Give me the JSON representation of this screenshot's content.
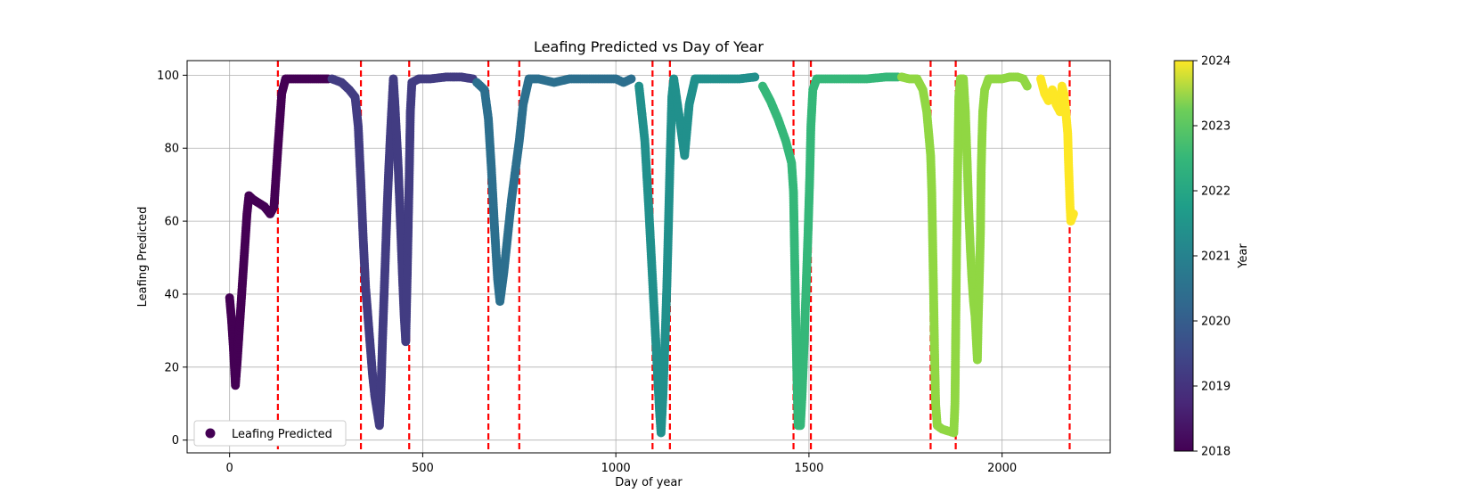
{
  "chart_data": {
    "type": "scatter",
    "title": "Leafing Predicted vs Day of Year",
    "xlabel": "Day of year",
    "ylabel": "Leafing Predicted",
    "xlim": [
      -110,
      2280
    ],
    "ylim": [
      -3.5,
      104
    ],
    "xticks": [
      0,
      500,
      1000,
      1500,
      2000
    ],
    "yticks": [
      0,
      20,
      40,
      60,
      80,
      100
    ],
    "grid": true,
    "legend": {
      "position": "lower-left",
      "entries": [
        {
          "label": "Leafing Predicted",
          "color": "#440154"
        }
      ]
    },
    "colorbar": {
      "label": "Year",
      "min": 2018,
      "max": 2024,
      "ticks": [
        2018,
        2019,
        2020,
        2021,
        2022,
        2023,
        2024
      ],
      "colormap": "viridis"
    },
    "vlines": {
      "color": "#ff0000",
      "style": "dashed",
      "x": [
        125,
        340,
        465,
        670,
        750,
        1095,
        1140,
        1460,
        1505,
        1815,
        1880,
        2175
      ]
    },
    "series": [
      {
        "year": 2018,
        "color": "#440154",
        "points": [
          [
            0,
            39
          ],
          [
            5,
            33
          ],
          [
            10,
            25
          ],
          [
            15,
            15
          ],
          [
            20,
            22
          ],
          [
            25,
            30
          ],
          [
            30,
            38
          ],
          [
            35,
            46
          ],
          [
            40,
            54
          ],
          [
            45,
            62
          ],
          [
            50,
            67
          ],
          [
            60,
            66
          ],
          [
            75,
            65
          ],
          [
            90,
            64
          ],
          [
            105,
            62
          ],
          [
            115,
            64
          ],
          [
            125,
            80
          ],
          [
            135,
            95
          ],
          [
            145,
            99
          ],
          [
            165,
            99
          ],
          [
            200,
            99
          ],
          [
            230,
            99
          ],
          [
            255,
            99
          ]
        ]
      },
      {
        "year": 2019,
        "color": "#423c82",
        "points": [
          [
            265,
            99
          ],
          [
            290,
            98
          ],
          [
            310,
            96
          ],
          [
            325,
            94
          ],
          [
            333,
            86
          ],
          [
            340,
            70
          ],
          [
            346,
            55
          ],
          [
            352,
            42
          ],
          [
            358,
            34
          ],
          [
            364,
            26
          ],
          [
            370,
            18
          ],
          [
            376,
            12
          ],
          [
            382,
            8
          ],
          [
            388,
            4
          ],
          [
            392,
            14
          ],
          [
            396,
            28
          ],
          [
            400,
            40
          ],
          [
            404,
            52
          ],
          [
            408,
            64
          ],
          [
            412,
            74
          ],
          [
            416,
            83
          ],
          [
            420,
            91
          ],
          [
            424,
            99
          ],
          [
            428,
            92
          ],
          [
            432,
            84
          ],
          [
            436,
            76
          ],
          [
            440,
            66
          ],
          [
            444,
            55
          ],
          [
            448,
            44
          ],
          [
            452,
            34
          ],
          [
            456,
            27
          ],
          [
            460,
            46
          ],
          [
            465,
            72
          ],
          [
            468,
            90
          ],
          [
            472,
            98
          ],
          [
            490,
            99
          ],
          [
            520,
            99
          ],
          [
            560,
            99.5
          ],
          [
            600,
            99.5
          ],
          [
            630,
            99
          ]
        ]
      },
      {
        "year": 2020,
        "color": "#2c6f8e",
        "points": [
          [
            640,
            98
          ],
          [
            660,
            96
          ],
          [
            670,
            88
          ],
          [
            678,
            74
          ],
          [
            686,
            58
          ],
          [
            694,
            44
          ],
          [
            700,
            38
          ],
          [
            710,
            46
          ],
          [
            720,
            56
          ],
          [
            730,
            66
          ],
          [
            740,
            74
          ],
          [
            750,
            82
          ],
          [
            760,
            92
          ],
          [
            775,
            99
          ],
          [
            800,
            99
          ],
          [
            840,
            98
          ],
          [
            880,
            99
          ],
          [
            920,
            99
          ],
          [
            960,
            99
          ],
          [
            1000,
            99
          ],
          [
            1020,
            98
          ],
          [
            1040,
            99
          ]
        ]
      },
      {
        "year": 2021,
        "color": "#21908c",
        "points": [
          [
            1060,
            97
          ],
          [
            1075,
            82
          ],
          [
            1085,
            64
          ],
          [
            1093,
            48
          ],
          [
            1100,
            34
          ],
          [
            1107,
            20
          ],
          [
            1113,
            8
          ],
          [
            1117,
            2
          ],
          [
            1122,
            12
          ],
          [
            1127,
            26
          ],
          [
            1132,
            42
          ],
          [
            1136,
            58
          ],
          [
            1140,
            75
          ],
          [
            1145,
            94
          ],
          [
            1150,
            99
          ],
          [
            1165,
            88
          ],
          [
            1178,
            78
          ],
          [
            1190,
            92
          ],
          [
            1205,
            99
          ],
          [
            1240,
            99
          ],
          [
            1280,
            99
          ],
          [
            1320,
            99
          ],
          [
            1360,
            99.5
          ]
        ]
      },
      {
        "year": 2022,
        "color": "#35b779",
        "points": [
          [
            1380,
            97
          ],
          [
            1400,
            93
          ],
          [
            1420,
            88
          ],
          [
            1440,
            82
          ],
          [
            1455,
            76
          ],
          [
            1460,
            68
          ],
          [
            1462,
            56
          ],
          [
            1464,
            44
          ],
          [
            1466,
            32
          ],
          [
            1468,
            22
          ],
          [
            1470,
            12
          ],
          [
            1472,
            4
          ],
          [
            1478,
            4
          ],
          [
            1482,
            12
          ],
          [
            1486,
            22
          ],
          [
            1490,
            34
          ],
          [
            1494,
            46
          ],
          [
            1498,
            58
          ],
          [
            1502,
            72
          ],
          [
            1505,
            86
          ],
          [
            1510,
            96
          ],
          [
            1520,
            99
          ],
          [
            1560,
            99
          ],
          [
            1600,
            99
          ],
          [
            1650,
            99
          ],
          [
            1700,
            99.5
          ],
          [
            1730,
            99.5
          ]
        ]
      },
      {
        "year": 2023,
        "color": "#90d743",
        "points": [
          [
            1740,
            99.5
          ],
          [
            1760,
            99
          ],
          [
            1780,
            99
          ],
          [
            1795,
            96
          ],
          [
            1805,
            90
          ],
          [
            1810,
            84
          ],
          [
            1815,
            78
          ],
          [
            1818,
            68
          ],
          [
            1820,
            56
          ],
          [
            1822,
            44
          ],
          [
            1824,
            32
          ],
          [
            1826,
            20
          ],
          [
            1828,
            10
          ],
          [
            1832,
            4
          ],
          [
            1845,
            3
          ],
          [
            1860,
            2.5
          ],
          [
            1875,
            2
          ],
          [
            1878,
            10
          ],
          [
            1880,
            30
          ],
          [
            1882,
            50
          ],
          [
            1884,
            66
          ],
          [
            1886,
            80
          ],
          [
            1888,
            94
          ],
          [
            1892,
            99
          ],
          [
            1900,
            99
          ],
          [
            1905,
            90
          ],
          [
            1910,
            75
          ],
          [
            1914,
            62
          ],
          [
            1918,
            52
          ],
          [
            1922,
            44
          ],
          [
            1926,
            38
          ],
          [
            1930,
            34
          ],
          [
            1933,
            28
          ],
          [
            1936,
            22
          ],
          [
            1938,
            32
          ],
          [
            1940,
            40
          ],
          [
            1942,
            48
          ],
          [
            1944,
            57
          ],
          [
            1945,
            66
          ],
          [
            1946,
            74
          ],
          [
            1948,
            83
          ],
          [
            1950,
            90
          ],
          [
            1955,
            96
          ],
          [
            1965,
            99
          ],
          [
            2000,
            99
          ],
          [
            2020,
            99.5
          ],
          [
            2040,
            99.5
          ],
          [
            2055,
            99
          ],
          [
            2065,
            97
          ]
        ]
      },
      {
        "year": 2024,
        "color": "#fde725",
        "points": [
          [
            2100,
            99
          ],
          [
            2110,
            95
          ],
          [
            2120,
            93
          ],
          [
            2130,
            96
          ],
          [
            2140,
            92
          ],
          [
            2150,
            90
          ],
          [
            2155,
            97
          ],
          [
            2160,
            95
          ],
          [
            2165,
            90
          ],
          [
            2170,
            84
          ],
          [
            2172,
            76
          ],
          [
            2174,
            70
          ],
          [
            2176,
            64
          ],
          [
            2178,
            60
          ],
          [
            2185,
            62
          ]
        ]
      }
    ]
  }
}
